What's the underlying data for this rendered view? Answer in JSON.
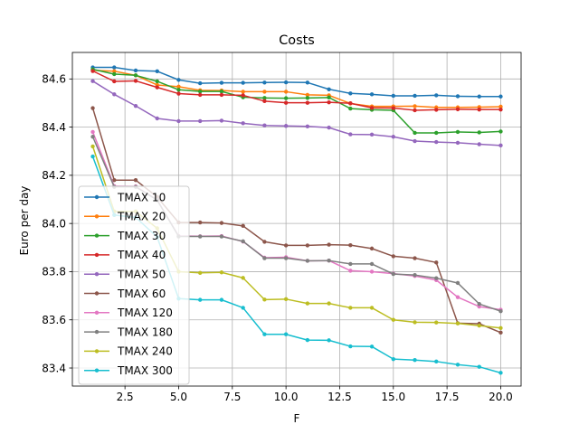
{
  "chart_data": {
    "type": "line",
    "title": "Costs",
    "xlabel": "F",
    "ylabel": "Euro per day",
    "xlim": [
      0.05,
      20.95
    ],
    "ylim": [
      83.325,
      84.71
    ],
    "xticks": [
      2.5,
      5.0,
      7.5,
      10.0,
      12.5,
      15.0,
      17.5,
      20.0
    ],
    "xtick_labels": [
      "2.5",
      "5.0",
      "7.5",
      "10.0",
      "12.5",
      "15.0",
      "17.5",
      "20.0"
    ],
    "yticks": [
      83.4,
      83.6,
      83.8,
      84.0,
      84.2,
      84.4,
      84.6
    ],
    "ytick_labels": [
      "83.4",
      "83.6",
      "83.8",
      "84.0",
      "84.2",
      "84.4",
      "84.6"
    ],
    "grid": true,
    "legend_position": "lower-left",
    "x": [
      1,
      2,
      3,
      4,
      5,
      6,
      7,
      8,
      9,
      10,
      11,
      12,
      13,
      14,
      15,
      16,
      17,
      18,
      19,
      20
    ],
    "series": [
      {
        "name": "TMAX 10",
        "color": "#1f77b4",
        "values": [
          84.648,
          84.648,
          84.635,
          84.632,
          84.596,
          84.582,
          84.584,
          84.584,
          84.585,
          84.586,
          84.585,
          84.557,
          84.54,
          84.536,
          84.53,
          84.53,
          84.532,
          84.528,
          84.527,
          84.527
        ]
      },
      {
        "name": "TMAX 20",
        "color": "#ff7f0e",
        "values": [
          84.636,
          84.632,
          84.615,
          84.575,
          84.568,
          84.553,
          84.552,
          84.547,
          84.547,
          84.547,
          84.534,
          84.532,
          84.498,
          84.486,
          84.486,
          84.487,
          84.482,
          84.482,
          84.483,
          84.485
        ]
      },
      {
        "name": "TMAX 30",
        "color": "#2ca02c",
        "values": [
          84.64,
          84.62,
          84.615,
          84.59,
          84.555,
          84.548,
          84.548,
          84.524,
          84.521,
          84.52,
          84.521,
          84.523,
          84.477,
          84.472,
          84.47,
          84.376,
          84.376,
          84.38,
          84.378,
          84.382
        ]
      },
      {
        "name": "TMAX 40",
        "color": "#d62728",
        "values": [
          84.633,
          84.59,
          84.592,
          84.565,
          84.539,
          84.534,
          84.534,
          84.532,
          84.508,
          84.501,
          84.501,
          84.503,
          84.499,
          84.48,
          84.479,
          84.47,
          84.472,
          84.474,
          84.473,
          84.473
        ]
      },
      {
        "name": "TMAX 50",
        "color": "#9467bd",
        "values": [
          84.591,
          84.536,
          84.488,
          84.436,
          84.425,
          84.425,
          84.427,
          84.416,
          84.407,
          84.405,
          84.403,
          84.398,
          84.37,
          84.369,
          84.36,
          84.342,
          84.338,
          84.335,
          84.329,
          84.324
        ]
      },
      {
        "name": "TMAX 60",
        "color": "#8c564b",
        "values": [
          84.479,
          84.18,
          84.18,
          84.11,
          84.004,
          84.004,
          84.002,
          83.99,
          83.924,
          83.909,
          83.909,
          83.912,
          83.91,
          83.896,
          83.864,
          83.856,
          83.838,
          83.586,
          83.584,
          83.547
        ]
      },
      {
        "name": "TMAX 120",
        "color": "#e377c2",
        "values": [
          84.38,
          84.155,
          84.154,
          84.098,
          83.948,
          83.947,
          83.948,
          83.925,
          83.858,
          83.86,
          83.845,
          83.846,
          83.804,
          83.8,
          83.792,
          83.782,
          83.765,
          83.694,
          83.655,
          83.642
        ]
      },
      {
        "name": "TMAX 180",
        "color": "#7f7f7f",
        "values": [
          84.36,
          84.152,
          84.152,
          84.097,
          83.946,
          83.946,
          83.946,
          83.926,
          83.856,
          83.856,
          83.845,
          83.846,
          83.832,
          83.832,
          83.79,
          83.786,
          83.773,
          83.753,
          83.666,
          83.636
        ]
      },
      {
        "name": "TMAX 240",
        "color": "#bcbd22",
        "values": [
          84.32,
          84.05,
          84.05,
          83.98,
          83.8,
          83.795,
          83.797,
          83.774,
          83.684,
          83.686,
          83.668,
          83.668,
          83.65,
          83.65,
          83.6,
          83.59,
          83.589,
          83.585,
          83.576,
          83.566
        ]
      },
      {
        "name": "TMAX 300",
        "color": "#17becf",
        "values": [
          84.278,
          84.035,
          84.025,
          83.944,
          83.688,
          83.683,
          83.683,
          83.65,
          83.54,
          83.54,
          83.516,
          83.515,
          83.49,
          83.489,
          83.437,
          83.433,
          83.427,
          83.414,
          83.405,
          83.38
        ]
      }
    ]
  }
}
